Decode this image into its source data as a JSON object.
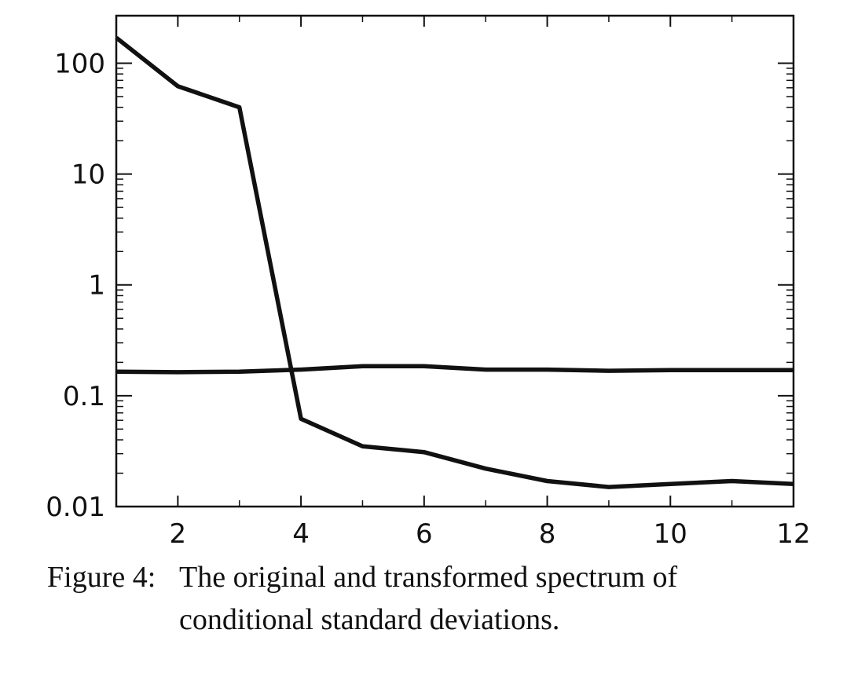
{
  "chart_data": {
    "type": "line",
    "title": "",
    "xlabel": "",
    "ylabel": "",
    "x_scale": "linear",
    "y_scale": "log",
    "xlim": [
      1,
      12
    ],
    "ylim": [
      0.01,
      200
    ],
    "x_ticks": [
      2,
      4,
      6,
      8,
      10,
      12
    ],
    "x_tick_labels": [
      "2",
      "4",
      "6",
      "8",
      "10",
      "12"
    ],
    "y_ticks": [
      0.01,
      0.1,
      1,
      10,
      100
    ],
    "y_tick_labels": [
      "0.01",
      "0.1",
      "1",
      "10",
      "100"
    ],
    "grid": false,
    "legend": "none",
    "line_color": "#111111",
    "series": [
      {
        "x": [
          1,
          2,
          3,
          4,
          5,
          6,
          7,
          8,
          9,
          10,
          11,
          12
        ],
        "values": [
          170,
          62,
          40,
          0.062,
          0.035,
          0.031,
          0.022,
          0.017,
          0.015,
          0.016,
          0.017,
          0.016
        ]
      },
      {
        "x": [
          1,
          2,
          3,
          4,
          5,
          6,
          7,
          8,
          9,
          10,
          11,
          12
        ],
        "values": [
          0.165,
          0.163,
          0.165,
          0.172,
          0.185,
          0.185,
          0.172,
          0.172,
          0.168,
          0.17,
          0.17,
          0.17
        ]
      }
    ]
  },
  "caption": {
    "label": "Figure 4:",
    "line1": "The original and transformed spectrum of",
    "line2": "conditional standard deviations."
  }
}
